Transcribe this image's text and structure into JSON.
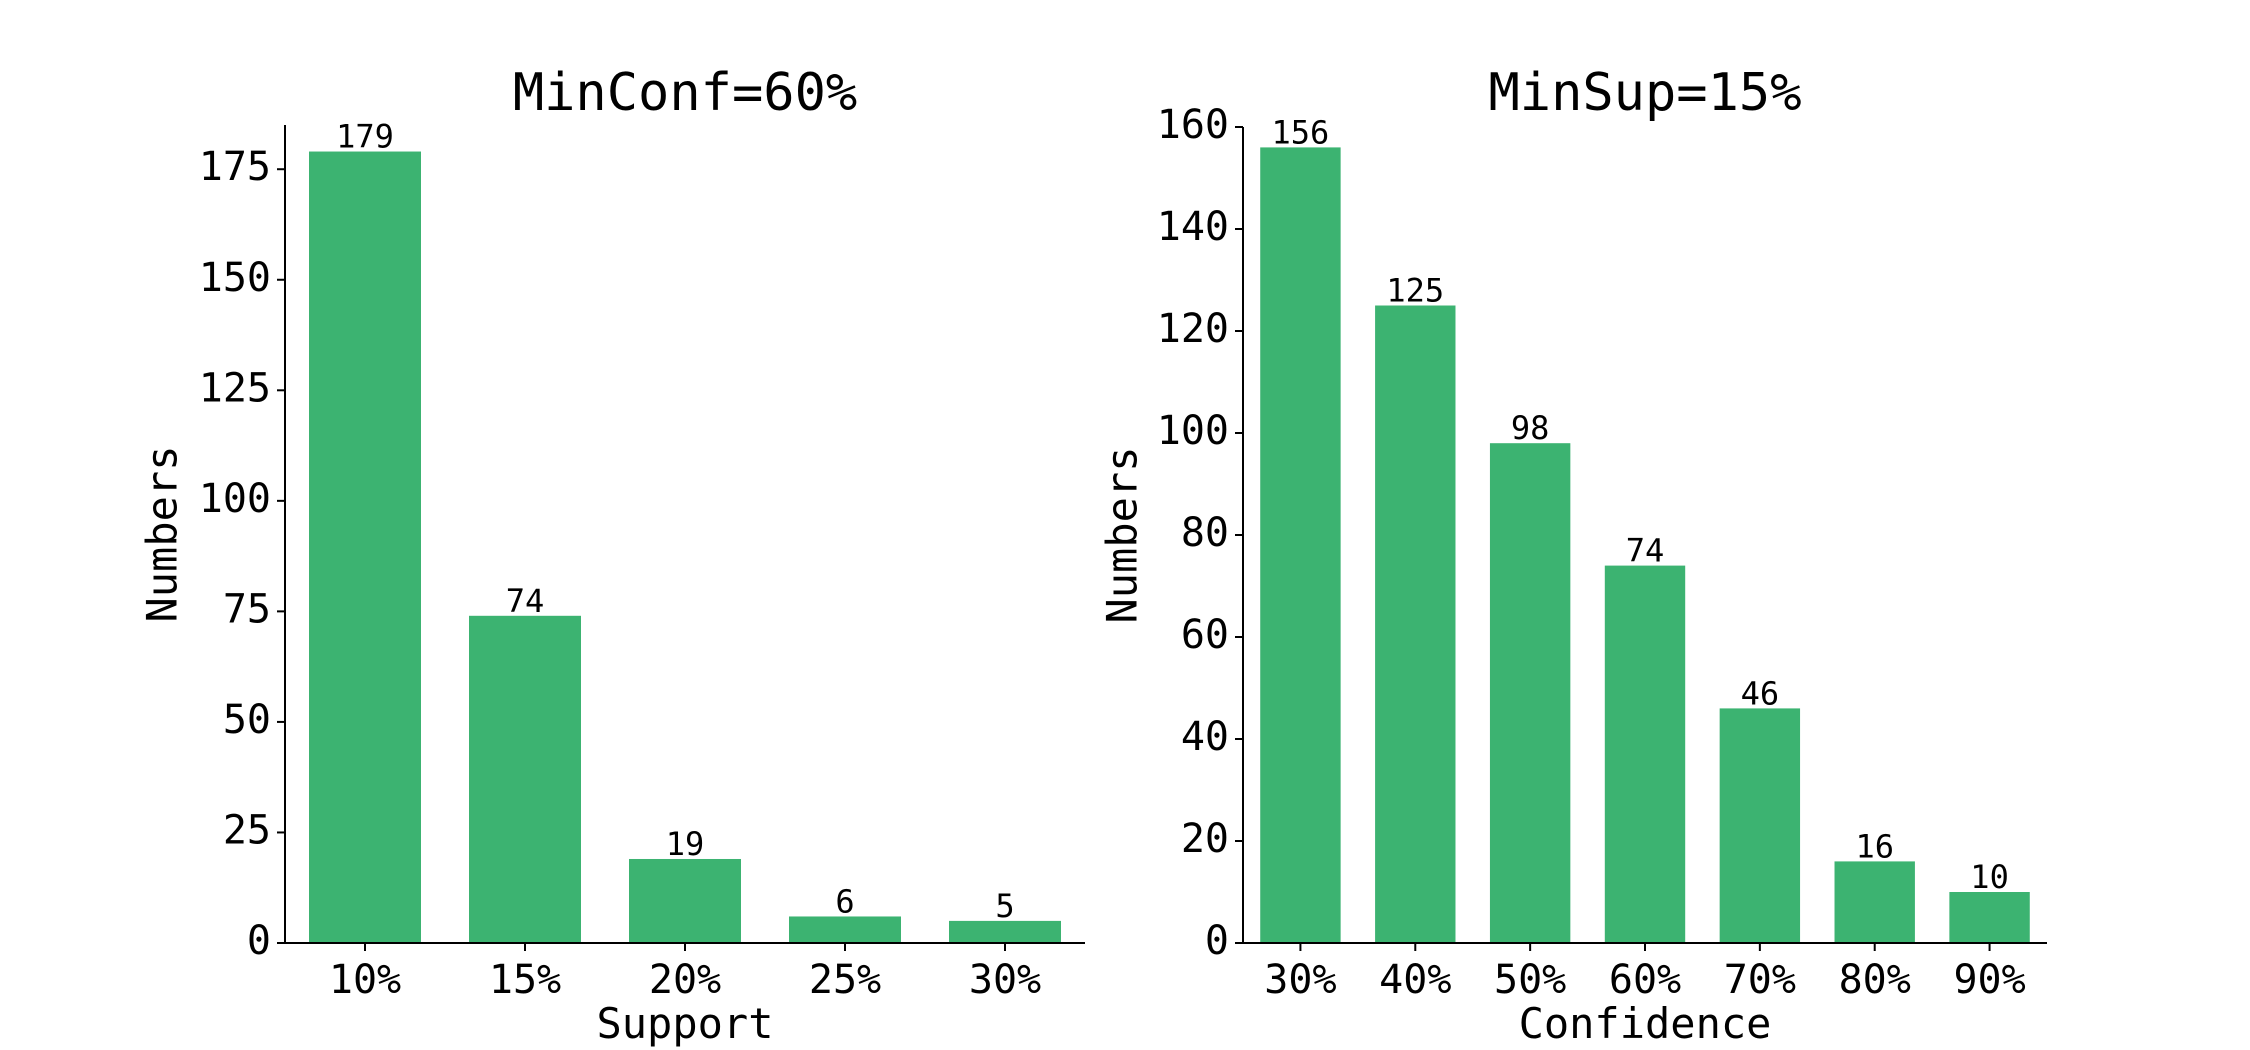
{
  "chart_data": [
    {
      "type": "bar",
      "title": "MinConf=60%",
      "xlabel": "Support",
      "ylabel": "Numbers",
      "categories": [
        "10%",
        "15%",
        "20%",
        "25%",
        "30%"
      ],
      "values": [
        179,
        74,
        19,
        6,
        5
      ],
      "ylim": [
        0,
        185
      ],
      "yticks": [
        0,
        25,
        50,
        75,
        100,
        125,
        150,
        175
      ],
      "bar_color": "#3cb371",
      "grid": false,
      "legend": "none"
    },
    {
      "type": "bar",
      "title": "MinSup=15%",
      "xlabel": "Confidence",
      "ylabel": "Numbers",
      "categories": [
        "30%",
        "40%",
        "50%",
        "60%",
        "70%",
        "80%",
        "90%"
      ],
      "values": [
        156,
        125,
        98,
        74,
        46,
        16,
        10
      ],
      "ylim": [
        0,
        160
      ],
      "yticks": [
        0,
        20,
        40,
        60,
        80,
        100,
        120,
        140,
        160
      ],
      "bar_color": "#3cb371",
      "grid": false,
      "legend": "none"
    }
  ]
}
